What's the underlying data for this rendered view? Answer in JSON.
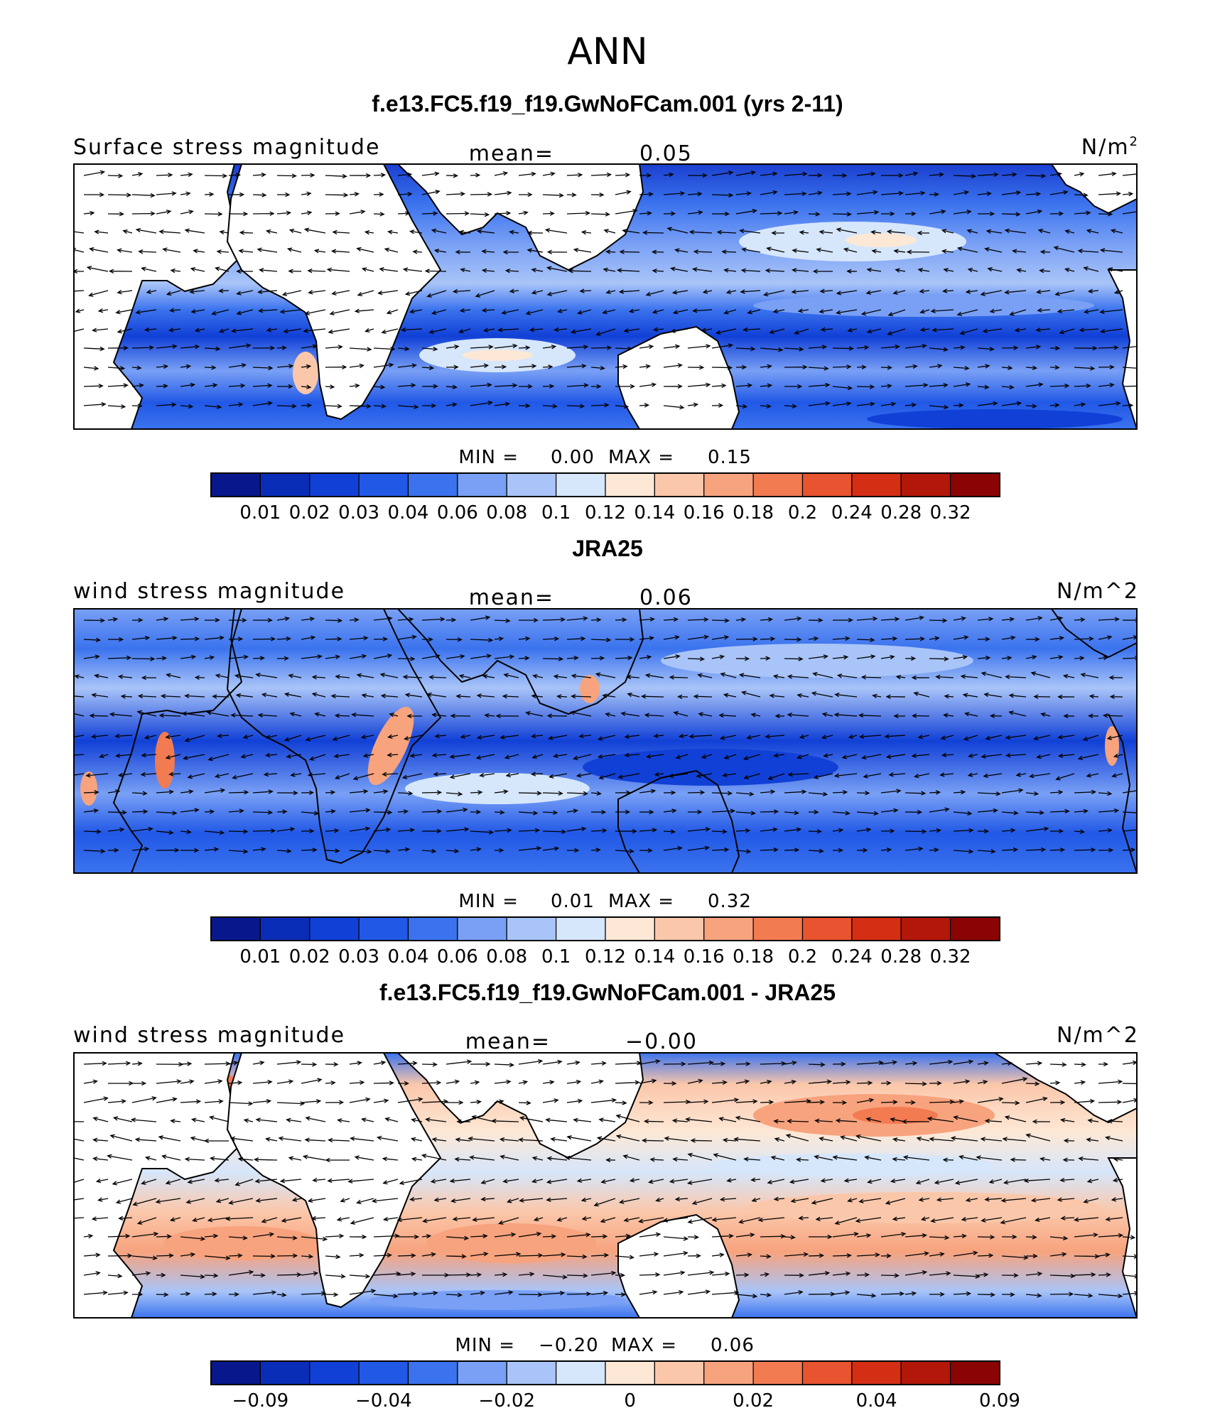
{
  "title": "ANN",
  "chart_data": [
    {
      "type": "heatmap",
      "title": "f.e13.FC5.f19_f19.GwNoFCam.001 (yrs 2-11)",
      "left_label": "Surface stress magnitude",
      "mean_label": "mean=",
      "mean_value": "0.05",
      "units_label": "N/m",
      "units_sup": "2",
      "min_label": "MIN =",
      "min_value": "0.00",
      "max_label": "MAX =",
      "max_value": "0.15",
      "colorbar_ticks": [
        "0.01",
        "0.02",
        "0.03",
        "0.04",
        "0.06",
        "0.08",
        "0.1",
        "0.12",
        "0.14",
        "0.16",
        "0.18",
        "0.2",
        "0.24",
        "0.28",
        "0.32"
      ],
      "colorbar_colors": [
        "#08188c",
        "#0a2db8",
        "#1140d6",
        "#2158e6",
        "#3b73ee",
        "#79a0f5",
        "#a9c4f8",
        "#d6e6fb",
        "#fde8d6",
        "#fbc7aa",
        "#f7a37e",
        "#f27b52",
        "#e85330",
        "#d42e14",
        "#b2170a",
        "#8a0404"
      ]
    },
    {
      "type": "heatmap",
      "title": "JRA25",
      "left_label": "wind stress magnitude",
      "mean_label": "mean=",
      "mean_value": "0.06",
      "units_label": "N/m^2",
      "min_label": "MIN =",
      "min_value": "0.01",
      "max_label": "MAX =",
      "max_value": "0.32",
      "colorbar_ticks": [
        "0.01",
        "0.02",
        "0.03",
        "0.04",
        "0.06",
        "0.08",
        "0.1",
        "0.12",
        "0.14",
        "0.16",
        "0.18",
        "0.2",
        "0.24",
        "0.28",
        "0.32"
      ],
      "colorbar_colors": [
        "#08188c",
        "#0a2db8",
        "#1140d6",
        "#2158e6",
        "#3b73ee",
        "#79a0f5",
        "#a9c4f8",
        "#d6e6fb",
        "#fde8d6",
        "#fbc7aa",
        "#f7a37e",
        "#f27b52",
        "#e85330",
        "#d42e14",
        "#b2170a",
        "#8a0404"
      ]
    },
    {
      "type": "heatmap",
      "title": "f.e13.FC5.f19_f19.GwNoFCam.001 - JRA25",
      "left_label": "wind stress magnitude",
      "mean_label": "mean=",
      "mean_value": "−0.00",
      "units_label": "N/m^2",
      "min_label": "MIN =",
      "min_value": "−0.20",
      "max_label": "MAX =",
      "max_value": "0.06",
      "colorbar_ticks": [
        "−0.09",
        "−0.04",
        "−0.02",
        "0",
        "0.02",
        "0.04",
        "0.09"
      ],
      "colorbar_colors": [
        "#08188c",
        "#0a2db8",
        "#1140d6",
        "#2158e6",
        "#3b73ee",
        "#79a0f5",
        "#a9c4f8",
        "#d6e6fb",
        "#fde8d6",
        "#fbc7aa",
        "#f7a37e",
        "#f27b52",
        "#e85330",
        "#d42e14",
        "#b2170a",
        "#8a0404"
      ]
    }
  ]
}
